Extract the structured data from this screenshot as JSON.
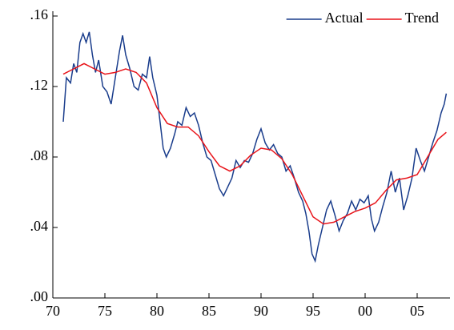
{
  "chart_data": {
    "type": "line",
    "xlim": [
      1970,
      2008
    ],
    "xticks": [
      {
        "value": 1970,
        "label": "70"
      },
      {
        "value": 1975,
        "label": "75"
      },
      {
        "value": 1980,
        "label": "80"
      },
      {
        "value": 1985,
        "label": "85"
      },
      {
        "value": 1990,
        "label": "90"
      },
      {
        "value": 1995,
        "label": "95"
      },
      {
        "value": 2000,
        "label": "00"
      },
      {
        "value": 2005,
        "label": "05"
      }
    ],
    "ylim": [
      0,
      0.16
    ],
    "yticks": [
      {
        "value": 0,
        "label": ".00"
      },
      {
        "value": 0.04,
        "label": ".04"
      },
      {
        "value": 0.08,
        "label": ".08"
      },
      {
        "value": 0.12,
        "label": ".12"
      },
      {
        "value": 0.16,
        "label": ".16"
      }
    ],
    "legend": "top-right",
    "series": [
      {
        "name": "Actual",
        "color": "#1a3d8c",
        "x": [
          1971.0,
          1971.3,
          1971.7,
          1972.0,
          1972.3,
          1972.6,
          1972.9,
          1973.2,
          1973.5,
          1973.8,
          1974.1,
          1974.4,
          1974.8,
          1975.2,
          1975.6,
          1976.0,
          1976.4,
          1976.7,
          1977.0,
          1977.4,
          1977.8,
          1978.2,
          1978.6,
          1979.0,
          1979.3,
          1979.6,
          1980.0,
          1980.3,
          1980.6,
          1980.9,
          1981.3,
          1981.7,
          1982.0,
          1982.4,
          1982.8,
          1983.2,
          1983.6,
          1984.0,
          1984.4,
          1984.8,
          1985.2,
          1985.6,
          1986.0,
          1986.4,
          1986.8,
          1987.2,
          1987.6,
          1988.0,
          1988.4,
          1988.8,
          1989.2,
          1989.6,
          1990.0,
          1990.4,
          1990.8,
          1991.2,
          1991.6,
          1992.0,
          1992.4,
          1992.8,
          1993.2,
          1993.6,
          1994.0,
          1994.3,
          1994.6,
          1994.9,
          1995.2,
          1995.5,
          1995.9,
          1996.3,
          1996.7,
          1997.1,
          1997.5,
          1997.9,
          1998.3,
          1998.7,
          1999.1,
          1999.5,
          1999.9,
          2000.3,
          2000.6,
          2000.9,
          2001.3,
          2001.7,
          2002.1,
          2002.5,
          2002.9,
          2003.3,
          2003.7,
          2004.1,
          2004.5,
          2004.9,
          2005.3,
          2005.7,
          2006.1,
          2006.5,
          2006.9,
          2007.3,
          2007.6,
          2007.8
        ],
        "values": [
          0.1,
          0.125,
          0.122,
          0.133,
          0.128,
          0.145,
          0.15,
          0.145,
          0.151,
          0.138,
          0.128,
          0.135,
          0.12,
          0.117,
          0.11,
          0.125,
          0.14,
          0.149,
          0.138,
          0.13,
          0.12,
          0.118,
          0.127,
          0.125,
          0.137,
          0.125,
          0.115,
          0.1,
          0.085,
          0.08,
          0.085,
          0.093,
          0.1,
          0.098,
          0.108,
          0.103,
          0.105,
          0.098,
          0.088,
          0.08,
          0.078,
          0.07,
          0.062,
          0.058,
          0.063,
          0.068,
          0.078,
          0.074,
          0.078,
          0.077,
          0.082,
          0.09,
          0.096,
          0.088,
          0.084,
          0.087,
          0.082,
          0.08,
          0.072,
          0.075,
          0.068,
          0.06,
          0.055,
          0.048,
          0.038,
          0.025,
          0.021,
          0.03,
          0.04,
          0.05,
          0.055,
          0.047,
          0.038,
          0.044,
          0.048,
          0.055,
          0.05,
          0.056,
          0.054,
          0.058,
          0.045,
          0.038,
          0.043,
          0.052,
          0.06,
          0.072,
          0.06,
          0.068,
          0.05,
          0.058,
          0.068,
          0.085,
          0.078,
          0.072,
          0.08,
          0.088,
          0.095,
          0.105,
          0.11,
          0.116
        ]
      },
      {
        "name": "Trend",
        "color": "#e8141a",
        "x": [
          1971,
          1972,
          1973,
          1974,
          1975,
          1976,
          1977,
          1978,
          1979,
          1980,
          1981,
          1982,
          1983,
          1984,
          1985,
          1986,
          1987,
          1988,
          1989,
          1990,
          1991,
          1992,
          1993,
          1994,
          1995,
          1996,
          1997,
          1998,
          1999,
          2000,
          2001,
          2002,
          2003,
          2004,
          2005,
          2006,
          2007,
          2007.8
        ],
        "values": [
          0.127,
          0.13,
          0.133,
          0.13,
          0.127,
          0.128,
          0.13,
          0.128,
          0.122,
          0.108,
          0.099,
          0.097,
          0.097,
          0.092,
          0.083,
          0.075,
          0.072,
          0.075,
          0.081,
          0.085,
          0.084,
          0.079,
          0.07,
          0.058,
          0.046,
          0.042,
          0.043,
          0.046,
          0.049,
          0.051,
          0.054,
          0.061,
          0.067,
          0.068,
          0.07,
          0.08,
          0.09,
          0.094
        ]
      }
    ]
  }
}
